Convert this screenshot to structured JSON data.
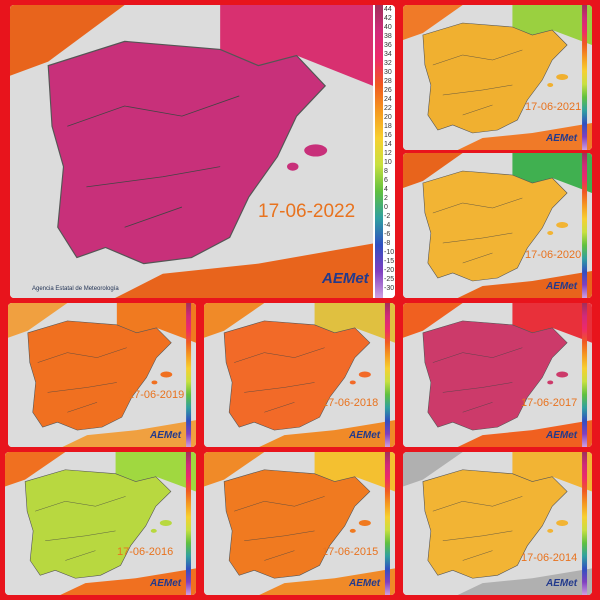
{
  "main": {
    "date": "17-06-2022",
    "logo": "AEMet",
    "agency": "Agencia Estatal de Meteorología",
    "scale": [
      44,
      42,
      40,
      38,
      36,
      34,
      32,
      30,
      28,
      26,
      24,
      22,
      20,
      18,
      16,
      14,
      12,
      10,
      8,
      6,
      4,
      2,
      0,
      -2,
      -4,
      -6,
      -8,
      -10,
      -15,
      -20,
      -25,
      -30
    ]
  },
  "panels": [
    {
      "date": "17-06-2021"
    },
    {
      "date": "17-06-2020"
    },
    {
      "date": "17-06-2019"
    },
    {
      "date": "17-06-2018"
    },
    {
      "date": "17-06-2017"
    },
    {
      "date": "17-06-2016"
    },
    {
      "date": "17-06-2015"
    },
    {
      "date": "17-06-2014"
    }
  ]
}
